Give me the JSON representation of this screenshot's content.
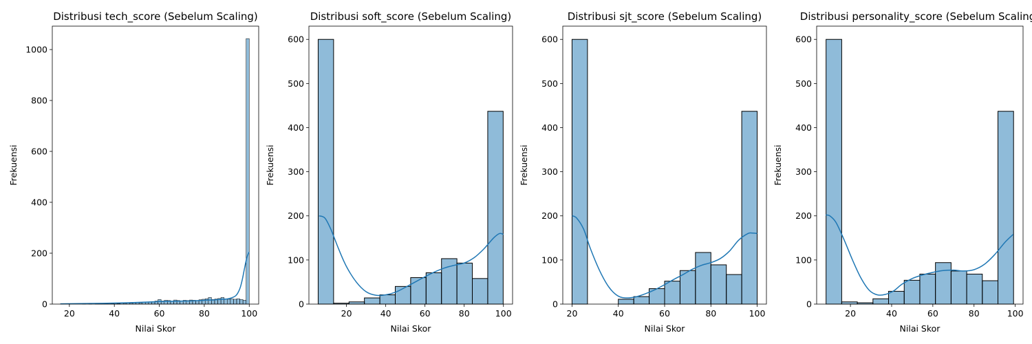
{
  "chart_data": [
    {
      "type": "bar",
      "title": "Distribusi tech_score (Sebelum Scaling)",
      "xlabel": "Nilai Skor",
      "ylabel": "Frekuensi",
      "xlim": [
        12.4,
        104.2
      ],
      "ylim": [
        0,
        1092
      ],
      "xticks": [
        20,
        40,
        60,
        80,
        100
      ],
      "yticks": [
        0,
        200,
        400,
        600,
        800,
        1000
      ],
      "grid": false,
      "bar_color": "#1f77b4",
      "bins": [
        [
          16.0,
          17.4,
          1
        ],
        [
          17.4,
          18.8,
          0
        ],
        [
          18.8,
          20.2,
          0
        ],
        [
          20.2,
          21.6,
          0
        ],
        [
          21.6,
          23.0,
          0
        ],
        [
          23.0,
          24.4,
          0
        ],
        [
          24.4,
          25.8,
          0
        ],
        [
          25.8,
          27.2,
          1
        ],
        [
          27.2,
          28.6,
          0
        ],
        [
          28.6,
          30.0,
          1
        ],
        [
          30.0,
          31.4,
          0
        ],
        [
          31.4,
          32.8,
          1
        ],
        [
          32.8,
          34.2,
          1
        ],
        [
          34.2,
          35.6,
          1
        ],
        [
          35.6,
          37.0,
          1
        ],
        [
          37.0,
          38.4,
          1
        ],
        [
          38.4,
          39.8,
          2
        ],
        [
          39.8,
          41.2,
          3
        ],
        [
          41.2,
          42.6,
          2
        ],
        [
          42.6,
          44.0,
          4
        ],
        [
          44.0,
          45.4,
          3
        ],
        [
          45.4,
          46.8,
          5
        ],
        [
          46.8,
          48.2,
          4
        ],
        [
          48.2,
          49.6,
          5
        ],
        [
          49.6,
          51.0,
          6
        ],
        [
          51.0,
          52.4,
          5
        ],
        [
          52.4,
          53.8,
          7
        ],
        [
          53.8,
          55.2,
          8
        ],
        [
          55.2,
          56.6,
          9
        ],
        [
          56.6,
          58.0,
          10
        ],
        [
          58.0,
          59.4,
          12
        ],
        [
          59.4,
          60.8,
          18
        ],
        [
          60.8,
          62.2,
          12
        ],
        [
          62.2,
          63.6,
          15
        ],
        [
          63.6,
          65.0,
          14
        ],
        [
          65.0,
          66.4,
          11
        ],
        [
          66.4,
          67.8,
          16
        ],
        [
          67.8,
          69.2,
          14
        ],
        [
          69.2,
          70.6,
          12
        ],
        [
          70.6,
          72.0,
          15
        ],
        [
          72.0,
          73.4,
          14
        ],
        [
          73.4,
          74.8,
          16
        ],
        [
          74.8,
          76.2,
          15
        ],
        [
          76.2,
          77.6,
          14
        ],
        [
          77.6,
          79.0,
          17
        ],
        [
          79.0,
          80.4,
          19
        ],
        [
          80.4,
          81.8,
          21
        ],
        [
          81.8,
          83.2,
          26
        ],
        [
          83.2,
          84.6,
          18
        ],
        [
          84.6,
          86.0,
          20
        ],
        [
          86.0,
          87.4,
          22
        ],
        [
          87.4,
          88.8,
          26
        ],
        [
          88.8,
          90.2,
          21
        ],
        [
          90.2,
          91.6,
          19
        ],
        [
          91.6,
          93.0,
          20
        ],
        [
          93.0,
          94.4,
          19
        ],
        [
          94.4,
          95.8,
          21
        ],
        [
          95.8,
          97.2,
          18
        ],
        [
          97.2,
          98.6,
          15
        ],
        [
          98.6,
          100.0,
          1043
        ]
      ],
      "kde": {
        "x": [
          16,
          25,
          35,
          45,
          55,
          60,
          65,
          70,
          75,
          80,
          85,
          88,
          90,
          92,
          94,
          95,
          96,
          97,
          98,
          99,
          100
        ],
        "y": [
          1,
          2,
          3,
          5,
          8,
          10,
          11,
          12,
          13,
          15,
          17,
          19,
          20,
          24,
          33,
          45,
          65,
          100,
          145,
          185,
          205
        ]
      }
    },
    {
      "type": "bar",
      "title": "Distribusi soft_score (Sebelum Scaling)",
      "xlabel": "Nilai Skor",
      "ylabel": "Frekuensi",
      "xlim": [
        0.85,
        104.65
      ],
      "ylim": [
        0,
        630
      ],
      "xticks": [
        20,
        40,
        60,
        80,
        100
      ],
      "yticks": [
        0,
        100,
        200,
        300,
        400,
        500,
        600
      ],
      "grid": false,
      "bar_color": "#1f77b4",
      "bins": [
        [
          5.57,
          13.43,
          600
        ],
        [
          13.43,
          21.29,
          2
        ],
        [
          21.29,
          29.14,
          5
        ],
        [
          29.14,
          37.0,
          14
        ],
        [
          37.0,
          44.86,
          21
        ],
        [
          44.86,
          52.71,
          40
        ],
        [
          52.71,
          60.57,
          60
        ],
        [
          60.57,
          68.43,
          71
        ],
        [
          68.43,
          76.29,
          103
        ],
        [
          76.29,
          84.14,
          93
        ],
        [
          84.14,
          92.0,
          58
        ],
        [
          92.0,
          99.86,
          437
        ]
      ],
      "kde": {
        "x": [
          6,
          9,
          12,
          16,
          20,
          25,
          30,
          35,
          40,
          45,
          50,
          55,
          60,
          65,
          70,
          75,
          80,
          85,
          90,
          95,
          98,
          100
        ],
        "y": [
          200,
          195,
          170,
          125,
          85,
          50,
          28,
          20,
          21,
          27,
          38,
          50,
          62,
          73,
          82,
          88,
          93,
          105,
          125,
          150,
          160,
          158
        ]
      }
    },
    {
      "type": "bar",
      "title": "Distribusi sjt_score (Sebelum Scaling)",
      "xlabel": "Nilai Skor",
      "ylabel": "Frekuensi",
      "xlim": [
        16.0,
        104.0
      ],
      "ylim": [
        0,
        630
      ],
      "xticks": [
        20,
        40,
        60,
        80,
        100
      ],
      "yticks": [
        0,
        100,
        200,
        300,
        400,
        500,
        600
      ],
      "grid": false,
      "bar_color": "#1f77b4",
      "bins": [
        [
          20.0,
          26.67,
          600
        ],
        [
          26.67,
          33.33,
          0
        ],
        [
          33.33,
          40.0,
          0
        ],
        [
          40.0,
          46.67,
          11
        ],
        [
          46.67,
          53.33,
          17
        ],
        [
          53.33,
          60.0,
          35
        ],
        [
          60.0,
          66.67,
          52
        ],
        [
          66.67,
          73.33,
          76
        ],
        [
          73.33,
          80.0,
          117
        ],
        [
          80.0,
          86.67,
          89
        ],
        [
          86.67,
          93.33,
          67
        ],
        [
          93.33,
          100.0,
          437
        ]
      ],
      "kde": {
        "x": [
          20,
          22,
          25,
          28,
          32,
          36,
          40,
          44,
          48,
          52,
          56,
          60,
          64,
          68,
          72,
          76,
          80,
          84,
          88,
          92,
          96,
          98,
          100
        ],
        "y": [
          200,
          195,
          170,
          125,
          75,
          38,
          18,
          14,
          17,
          24,
          33,
          44,
          56,
          67,
          79,
          88,
          94,
          103,
          120,
          145,
          160,
          161,
          160
        ]
      }
    },
    {
      "type": "bar",
      "title": "Distribusi personality_score (Sebelum Scaling)",
      "xlabel": "Nilai Skor",
      "ylabel": "Frekuensi",
      "xlim": [
        3.6,
        103.8
      ],
      "ylim": [
        0,
        630
      ],
      "xticks": [
        20,
        40,
        60,
        80,
        100
      ],
      "yticks": [
        0,
        100,
        200,
        300,
        400,
        500,
        600
      ],
      "grid": false,
      "bar_color": "#1f77b4",
      "bins": [
        [
          8.17,
          15.76,
          600
        ],
        [
          15.76,
          23.34,
          5
        ],
        [
          23.34,
          30.93,
          3
        ],
        [
          30.93,
          38.51,
          12
        ],
        [
          38.51,
          46.1,
          29
        ],
        [
          46.1,
          53.68,
          54
        ],
        [
          53.68,
          61.27,
          68
        ],
        [
          61.27,
          68.86,
          94
        ],
        [
          68.86,
          76.44,
          75
        ],
        [
          76.44,
          84.03,
          68
        ],
        [
          84.03,
          91.61,
          53
        ],
        [
          91.61,
          99.2,
          437
        ]
      ],
      "kde": {
        "x": [
          8,
          10,
          13,
          17,
          21,
          25,
          29,
          33,
          37,
          41,
          45,
          50,
          55,
          60,
          65,
          70,
          75,
          80,
          85,
          90,
          95,
          99
        ],
        "y": [
          202,
          200,
          185,
          145,
          100,
          60,
          32,
          21,
          22,
          30,
          45,
          58,
          66,
          72,
          76,
          77,
          75,
          78,
          90,
          112,
          140,
          158
        ]
      }
    }
  ]
}
